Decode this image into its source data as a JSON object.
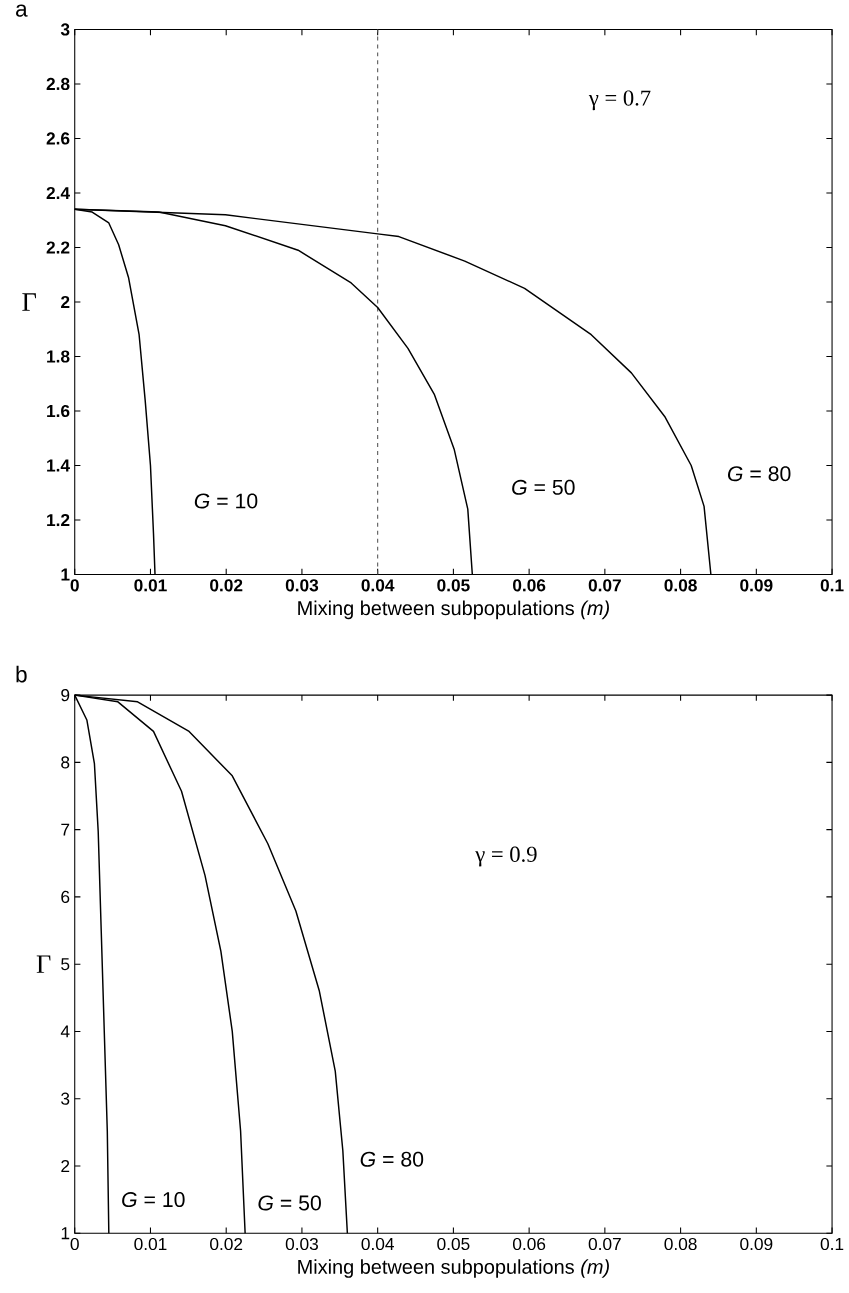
{
  "chart_data": [
    {
      "type": "line",
      "title": "a",
      "xlabel": "Mixing between subpopulations *(m)*",
      "ylabel": "Γ",
      "xlim": [
        0,
        0.1
      ],
      "xticks": [
        0,
        0.01,
        0.02,
        0.03,
        0.04,
        0.05,
        0.06,
        0.07,
        0.08,
        0.09,
        0.1
      ],
      "ylim": [
        1,
        3
      ],
      "yticks": [
        1,
        1.2,
        1.4,
        1.6,
        1.8,
        2,
        2.2,
        2.4,
        2.6,
        2.8,
        3
      ],
      "series": [
        {
          "name": "*G* = 10",
          "color": "#000000",
          "x": [
            0,
            0.0023,
            0.0045,
            0.0058,
            0.0071,
            0.0085,
            0.0093,
            0.01,
            0.0104,
            0.0106
          ],
          "values": [
            2.34,
            2.33,
            2.29,
            2.21,
            2.09,
            1.88,
            1.64,
            1.4,
            1.15,
            1.0
          ]
        },
        {
          "name": "*G* = 50",
          "color": "#000000",
          "x": [
            0,
            0.0111,
            0.0199,
            0.0295,
            0.0365,
            0.04,
            0.044,
            0.0475,
            0.0501,
            0.0519,
            0.0525
          ],
          "values": [
            2.34,
            2.33,
            2.28,
            2.19,
            2.07,
            1.98,
            1.83,
            1.66,
            1.46,
            1.24,
            1.0
          ]
        },
        {
          "name": "*G* = 80",
          "color": "#000000",
          "x": [
            0,
            0.0199,
            0.04,
            0.0428,
            0.0515,
            0.0594,
            0.0682,
            0.0735,
            0.0779,
            0.0814,
            0.0831,
            0.084
          ],
          "values": [
            2.34,
            2.32,
            2.25,
            2.24,
            2.15,
            2.05,
            1.88,
            1.74,
            1.58,
            1.4,
            1.25,
            1.0
          ]
        }
      ],
      "ref_lines": [
        {
          "axis": "x",
          "value": 0.04,
          "color": "#555555",
          "line_style": "dashed"
        }
      ],
      "annotations": [
        "γ = 0.7"
      ]
    },
    {
      "type": "line",
      "title": "b",
      "xlabel": "Mixing between subpopulations *(m)*",
      "ylabel": "Γ",
      "xlim": [
        0,
        0.1
      ],
      "xticks": [
        0,
        0.01,
        0.02,
        0.03,
        0.04,
        0.05,
        0.06,
        0.07,
        0.08,
        0.09,
        0.1
      ],
      "ylim": [
        1,
        9
      ],
      "yticks": [
        1,
        2,
        3,
        4,
        5,
        6,
        7,
        8,
        9
      ],
      "series": [
        {
          "name": "*G* = 10",
          "color": "#000000",
          "x": [
            0,
            0.0016,
            0.0026,
            0.0031,
            0.0035,
            0.0039,
            0.0043,
            0.0045
          ],
          "values": [
            9,
            8.63,
            7.98,
            6.97,
            5.49,
            4.0,
            2.52,
            1.0
          ]
        },
        {
          "name": "*G* = 50",
          "color": "#000000",
          "x": [
            0,
            0.0057,
            0.0104,
            0.0141,
            0.0172,
            0.0193,
            0.0208,
            0.0219,
            0.0225
          ],
          "values": [
            9,
            8.9,
            8.46,
            7.57,
            6.32,
            5.19,
            4.0,
            2.52,
            1.0
          ]
        },
        {
          "name": "*G* = 80",
          "color": "#000000",
          "x": [
            0,
            0.0083,
            0.0151,
            0.0208,
            0.0255,
            0.0292,
            0.0323,
            0.0344,
            0.0354,
            0.036
          ],
          "values": [
            9,
            8.9,
            8.46,
            7.8,
            6.79,
            5.79,
            4.6,
            3.41,
            2.23,
            1.0
          ]
        }
      ],
      "annotations": [
        "γ = 0.9"
      ]
    }
  ]
}
